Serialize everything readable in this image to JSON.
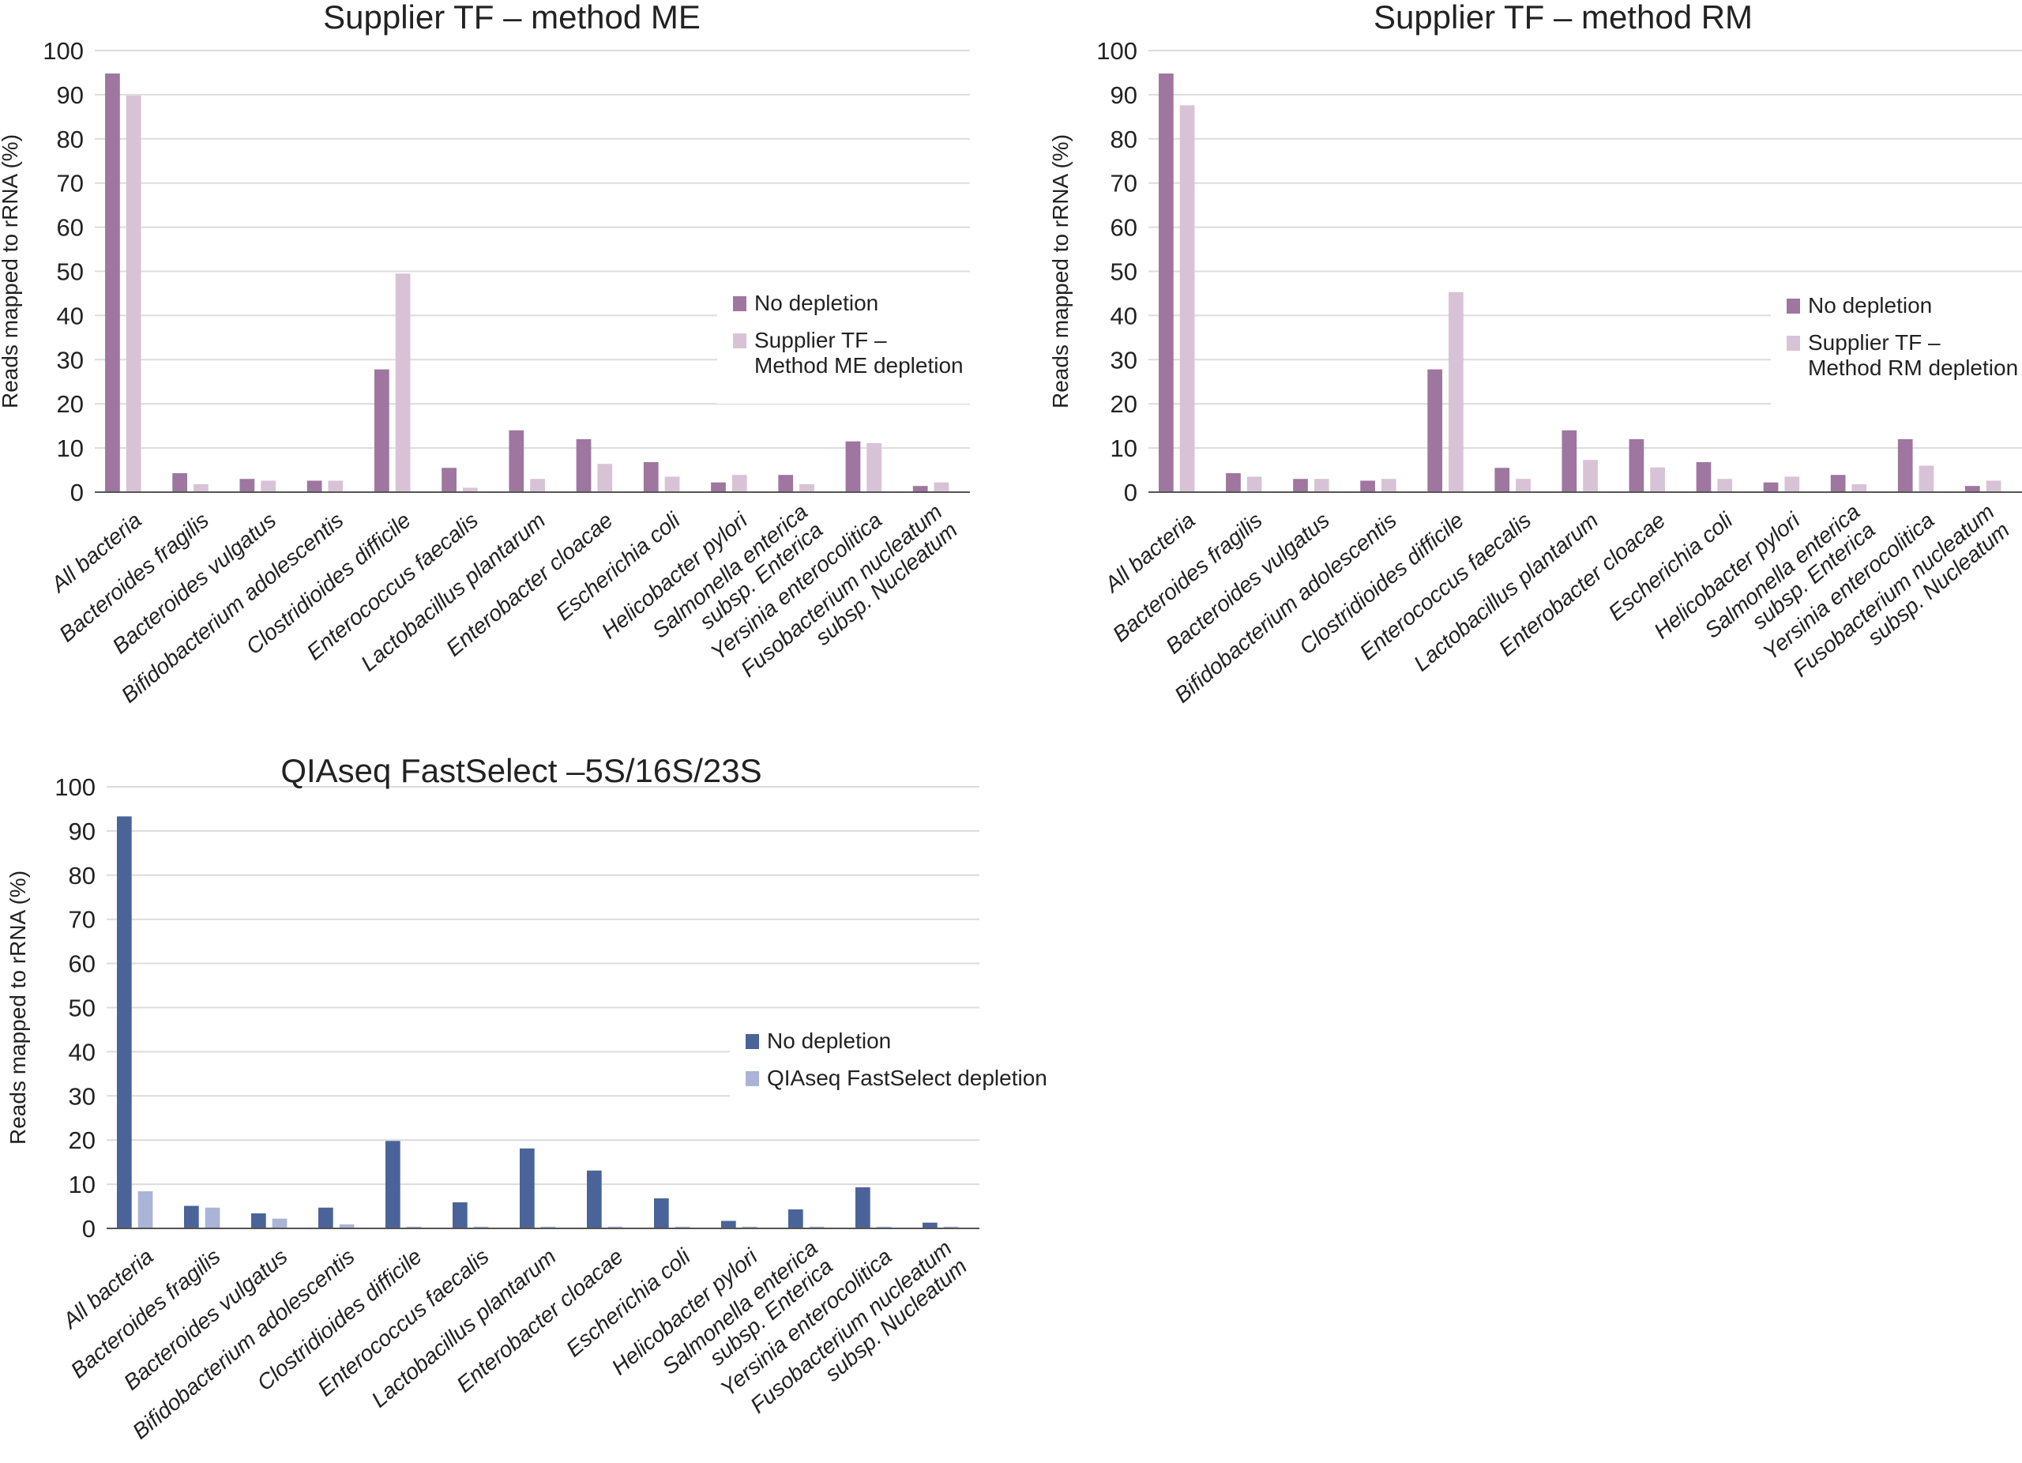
{
  "chart_data": [
    {
      "type": "bar",
      "title": "Supplier TF – method ME",
      "xlabel": "",
      "ylabel": "Reads mapped to rRNA (%)",
      "ylim": [
        0,
        100
      ],
      "yticks": [
        "0",
        "10",
        "20",
        "30",
        "40",
        "50",
        "60",
        "70",
        "80",
        "90",
        "100"
      ],
      "grid": true,
      "legend_position": "right",
      "categories": [
        "All bacteria",
        "Bacteroides fragilis",
        "Bacteroides vulgatus",
        "Bifidobacterium adolescentis",
        "Clostridioides difficile",
        "Enterococcus faecalis",
        "Lactobacillus plantarum",
        "Enterobacter cloacae",
        "Escherichia coli",
        "Helicobacter pylori",
        "Salmonella enterica\nsubsp. Enterica",
        "Yersinia enterocolitica",
        "Fusobacterium nucleatum\nsubsp. Nucleatum"
      ],
      "series": [
        {
          "name": "No depletion",
          "color": "#9e76a0",
          "values": [
            94.8,
            4.3,
            3.0,
            2.6,
            27.8,
            5.5,
            14.0,
            12.0,
            6.8,
            2.2,
            3.9,
            11.5,
            1.4
          ]
        },
        {
          "name": "Supplier TF –\nMethod ME depletion",
          "color": "#d8c3d6",
          "values": [
            89.8,
            1.8,
            2.6,
            2.6,
            49.5,
            1.0,
            3.0,
            6.4,
            3.5,
            3.9,
            1.8,
            11.1,
            2.2
          ]
        }
      ]
    },
    {
      "type": "bar",
      "title": "Supplier TF – method RM",
      "xlabel": "",
      "ylabel": "Reads mapped to rRNA (%)",
      "ylim": [
        0,
        100
      ],
      "yticks": [
        "0",
        "10",
        "20",
        "30",
        "40",
        "50",
        "60",
        "70",
        "80",
        "90",
        "100"
      ],
      "grid": true,
      "legend_position": "right",
      "categories": [
        "All bacteria",
        "Bacteroides fragilis",
        "Bacteroides vulgatus",
        "Bifidobacterium adolescentis",
        "Clostridioides difficile",
        "Enterococcus faecalis",
        "Lactobacillus plantarum",
        "Enterobacter cloacae",
        "Escherichia coli",
        "Helicobacter pylori",
        "Salmonella enterica\nsubsp. Enterica",
        "Yersinia enterocolitica",
        "Fusobacterium nucleatum\nsubsp. Nucleatum"
      ],
      "series": [
        {
          "name": "No depletion",
          "color": "#9e76a0",
          "values": [
            94.8,
            4.3,
            3.0,
            2.6,
            27.8,
            5.5,
            14.0,
            12.0,
            6.8,
            2.2,
            3.9,
            12.0,
            1.4
          ]
        },
        {
          "name": "Supplier TF –\nMethod RM depletion",
          "color": "#d8c3d6",
          "values": [
            87.6,
            3.5,
            3.0,
            3.0,
            45.3,
            3.0,
            7.3,
            5.6,
            3.0,
            3.5,
            1.8,
            6.0,
            2.6
          ]
        }
      ]
    },
    {
      "type": "bar",
      "title": "QIAseq FastSelect –5S/16S/23S",
      "xlabel": "",
      "ylabel": "Reads mapped to rRNA (%)",
      "ylim": [
        0,
        100
      ],
      "yticks": [
        "0",
        "10",
        "20",
        "30",
        "40",
        "50",
        "60",
        "70",
        "80",
        "90",
        "100"
      ],
      "grid": true,
      "legend_position": "right",
      "categories": [
        "All bacteria",
        "Bacteroides fragilis",
        "Bacteroides vulgatus",
        "Bifidobacterium adolescentis",
        "Clostridioides difficile",
        "Enterococcus faecalis",
        "Lactobacillus plantarum",
        "Enterobacter cloacae",
        "Escherichia coli",
        "Helicobacter pylori",
        "Salmonella enterica\nsubsp. Enterica",
        "Yersinia enterocolitica",
        "Fusobacterium nucleatum\nsubsp. Nucleatum"
      ],
      "series": [
        {
          "name": "No depletion",
          "color": "#4a6499",
          "values": [
            93.3,
            5.1,
            3.4,
            4.7,
            19.8,
            5.9,
            18.1,
            13.1,
            6.8,
            1.7,
            4.3,
            9.3,
            1.3
          ]
        },
        {
          "name": "QIAseq FastSelect depletion",
          "color": "#aab4d6",
          "values": [
            8.4,
            4.7,
            2.2,
            0.9,
            0.4,
            0.4,
            0.4,
            0.4,
            0.4,
            0.4,
            0.4,
            0.4,
            0.4
          ]
        }
      ]
    }
  ]
}
